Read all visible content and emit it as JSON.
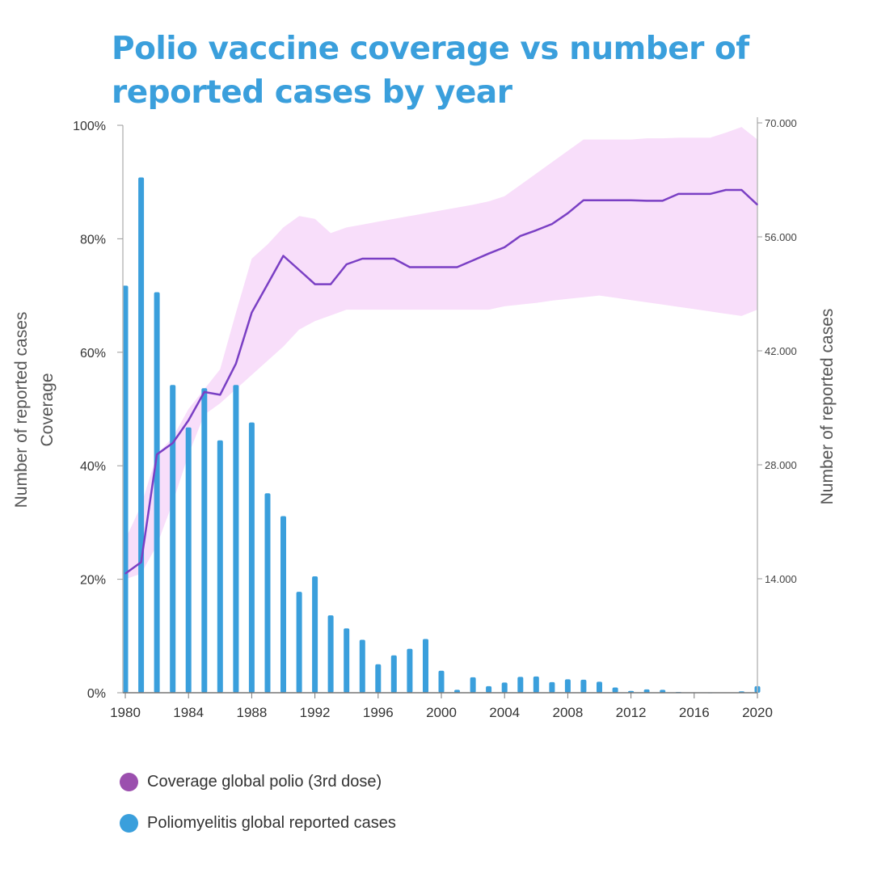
{
  "title": "Polio vaccine coverage vs number of reported cases by year",
  "colors": {
    "title": "#3a9fdc",
    "coverage_line": "#7a3fc4",
    "coverage_band": "#f8defa",
    "cases_bars": "#3a9fdc",
    "legend_coverage": "#9b4fae",
    "legend_cases": "#3a9fdc"
  },
  "legend": {
    "coverage_label": "Coverage global polio (3rd dose)",
    "cases_label": "Poliomyelitis global reported cases"
  },
  "chart_data": {
    "type": "bar+line",
    "title": "Polio vaccine coverage vs number of reported cases by year",
    "x_axis": {
      "range": [
        1980,
        2020
      ],
      "ticks": [
        "1980",
        "1984",
        "1988",
        "1992",
        "1996",
        "2000",
        "2004",
        "2008",
        "2012",
        "2016",
        "2020"
      ]
    },
    "y_left": {
      "label_line1": "Number of reported cases",
      "label_line2": "Coverage",
      "range": [
        0,
        100
      ],
      "ticks": [
        "0%",
        "20%",
        "40%",
        "60%",
        "80%",
        "100%"
      ]
    },
    "y_right": {
      "label": "Number of reported cases",
      "range": [
        0,
        70000
      ],
      "ticks": [
        "14.000",
        "28.000",
        "42.000",
        "56.000",
        "70.000"
      ]
    },
    "series": [
      {
        "name": "Coverage global polio (3rd dose)",
        "type": "line",
        "axis": "left",
        "x": [
          1980,
          1981,
          1982,
          1983,
          1984,
          1985,
          1986,
          1987,
          1988,
          1989,
          1990,
          1991,
          1992,
          1993,
          1994,
          1995,
          1996,
          1997,
          1998,
          1999,
          2000,
          2001,
          2002,
          2003,
          2004,
          2005,
          2006,
          2007,
          2008,
          2009,
          2010,
          2011,
          2012,
          2013,
          2014,
          2015,
          2016,
          2017,
          2018,
          2019,
          2020
        ],
        "values": [
          21,
          23,
          42,
          44,
          48,
          53,
          52.5,
          58,
          67,
          72,
          77,
          74.5,
          72,
          72,
          75.5,
          76.5,
          76.5,
          76.5,
          75,
          75,
          75,
          75,
          76.2,
          77.4,
          78.5,
          80.5,
          81.5,
          82.6,
          84.5,
          86.8,
          86.8,
          86.8,
          86.8,
          86.7,
          86.7,
          87.9,
          87.9,
          87.9,
          88.6,
          88.6,
          86
        ],
        "band_upper": [
          27,
          33,
          42,
          45,
          50,
          53.5,
          57,
          67,
          76.5,
          79,
          82,
          84,
          83.5,
          81,
          82,
          82.5,
          83,
          83.5,
          84,
          84.5,
          85,
          85.5,
          86,
          86.6,
          87.5,
          89.5,
          91.5,
          93.5,
          95.5,
          97.5,
          97.5,
          97.5,
          97.5,
          97.7,
          97.7,
          97.8,
          97.8,
          97.8,
          98.7,
          99.7,
          97.5
        ],
        "band_lower": [
          20,
          21,
          26,
          33.5,
          42,
          49,
          51,
          53.5,
          56,
          58.5,
          61,
          64,
          65.5,
          66.5,
          67.5,
          67.5,
          67.5,
          67.5,
          67.5,
          67.5,
          67.5,
          67.5,
          67.5,
          67.5,
          68.1,
          68.4,
          68.7,
          69.1,
          69.4,
          69.7,
          70,
          69.6,
          69.2,
          68.8,
          68.4,
          68,
          67.6,
          67.2,
          66.8,
          66.4,
          67.5
        ]
      },
      {
        "name": "Poliomyelitis global reported cases",
        "type": "bar",
        "axis": "right",
        "x": [
          1980,
          1981,
          1982,
          1983,
          1984,
          1985,
          1986,
          1987,
          1988,
          1989,
          1990,
          1991,
          1992,
          1993,
          1994,
          1995,
          1996,
          1997,
          1998,
          1999,
          2000,
          2001,
          2002,
          2003,
          2004,
          2005,
          2006,
          2007,
          2008,
          2009,
          2010,
          2011,
          2012,
          2013,
          2014,
          2015,
          2016,
          2017,
          2018,
          2019,
          2020
        ],
        "values": [
          50000,
          63300,
          49200,
          37800,
          32600,
          37400,
          31000,
          37800,
          33200,
          24500,
          21700,
          12400,
          14300,
          9500,
          7900,
          6500,
          3500,
          4600,
          5400,
          6600,
          2700,
          360,
          1900,
          800,
          1250,
          1950,
          2000,
          1300,
          1650,
          1600,
          1350,
          650,
          220,
          410,
          360,
          100,
          40,
          20,
          30,
          180,
          800
        ]
      }
    ]
  }
}
